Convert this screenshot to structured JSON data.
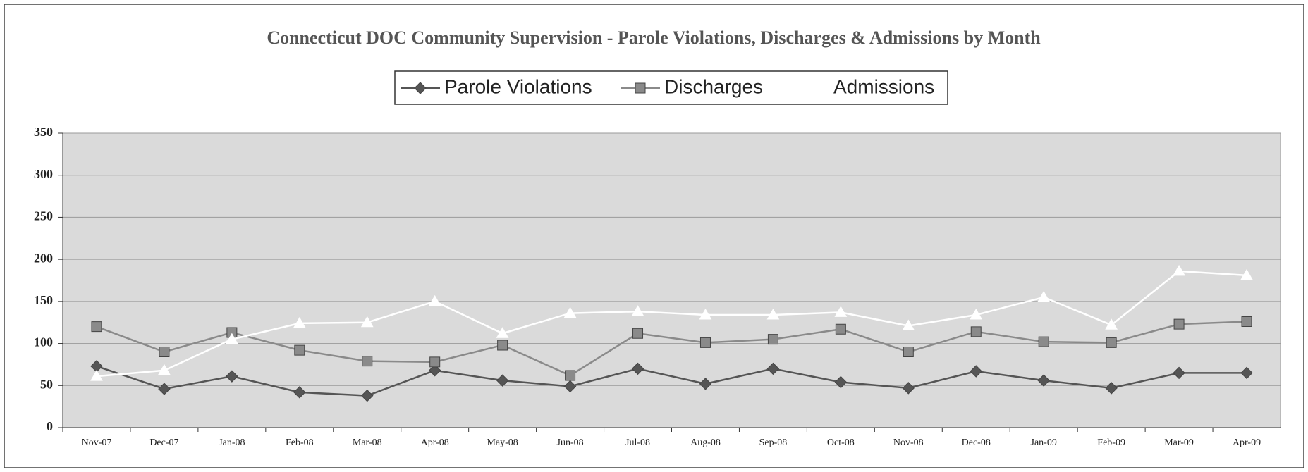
{
  "chart_data": {
    "type": "line",
    "title": "Connecticut DOC Community Supervision -  Parole Violations,  Discharges & Admissions by Month",
    "categories": [
      "Nov-07",
      "Dec-07",
      "Jan-08",
      "Feb-08",
      "Mar-08",
      "Apr-08",
      "May-08",
      "Jun-08",
      "Jul-08",
      "Aug-08",
      "Sep-08",
      "Oct-08",
      "Nov-08",
      "Dec-08",
      "Jan-09",
      "Feb-09",
      "Mar-09",
      "Apr-09"
    ],
    "series": [
      {
        "name": "Parole Violations",
        "color": "#555555",
        "marker": "diamond",
        "values": [
          73,
          46,
          61,
          42,
          38,
          68,
          56,
          49,
          70,
          52,
          70,
          54,
          47,
          67,
          56,
          47,
          65,
          65
        ]
      },
      {
        "name": "Discharges",
        "color": "#8a8a8a",
        "marker": "square",
        "values": [
          120,
          90,
          113,
          92,
          79,
          78,
          98,
          62,
          112,
          101,
          105,
          117,
          90,
          114,
          102,
          101,
          123,
          126
        ]
      },
      {
        "name": "Admissions",
        "color": "#ffffff",
        "marker": "triangle",
        "values": [
          61,
          68,
          105,
          124,
          125,
          150,
          112,
          136,
          138,
          134,
          134,
          137,
          121,
          134,
          155,
          122,
          186,
          181
        ]
      }
    ],
    "ylim": [
      0,
      350
    ],
    "yticks": [
      0,
      50,
      100,
      150,
      200,
      250,
      300,
      350
    ],
    "grid": true,
    "legend": "top"
  }
}
